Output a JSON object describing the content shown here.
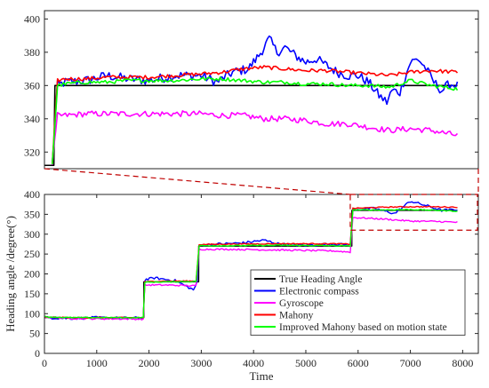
{
  "chart_data": [
    {
      "type": "line",
      "panel": "zoom-inset",
      "title": "",
      "xlabel": "",
      "ylabel": "",
      "xlim": [
        0,
        8300
      ],
      "ylim": [
        310,
        405
      ],
      "yticks": [
        320,
        340,
        360,
        380,
        400
      ],
      "grid": false,
      "series": [
        {
          "name": "True Heading Angle",
          "color": "#000000",
          "x": [
            0,
            180,
            200,
            500,
            1000,
            2000,
            3000,
            4000,
            5000,
            6000,
            7000,
            7900
          ],
          "y": [
            312,
            312,
            360,
            360,
            360,
            360,
            360,
            360,
            360,
            360,
            360,
            360
          ]
        },
        {
          "name": "Electronic compass",
          "color": "#0000ff",
          "x": [
            150,
            250,
            400,
            800,
            1200,
            1600,
            2000,
            2500,
            3000,
            3300,
            3600,
            3900,
            4100,
            4300,
            4450,
            4600,
            4800,
            5000,
            5200,
            5400,
            5600,
            5800,
            6000,
            6200,
            6400,
            6550,
            6650,
            6800,
            7000,
            7150,
            7300,
            7450,
            7600,
            7750,
            7900
          ],
          "y": [
            313,
            360,
            362,
            363,
            366,
            364,
            363,
            366,
            366,
            362,
            368,
            370,
            378,
            388,
            380,
            383,
            378,
            374,
            376,
            372,
            368,
            366,
            366,
            362,
            354,
            350,
            357,
            356,
            374,
            376,
            370,
            362,
            357,
            361,
            360
          ]
        },
        {
          "name": "Gyroscope",
          "color": "#ff00ff",
          "x": [
            150,
            250,
            400,
            800,
            1200,
            1600,
            2000,
            2500,
            3000,
            3400,
            3800,
            4200,
            4600,
            5000,
            5400,
            5800,
            6200,
            6600,
            7000,
            7400,
            7900
          ],
          "y": [
            313,
            342,
            342,
            343,
            343,
            343,
            343,
            343,
            343,
            342,
            342,
            340,
            340,
            339,
            337,
            337,
            335,
            333,
            334,
            333,
            330
          ]
        },
        {
          "name": "Mahony",
          "color": "#ff0000",
          "x": [
            150,
            250,
            400,
            800,
            1200,
            1600,
            2000,
            2500,
            3000,
            3400,
            3800,
            4200,
            4600,
            5000,
            5400,
            5800,
            6200,
            6600,
            7000,
            7400,
            7900
          ],
          "y": [
            313,
            363,
            364,
            364,
            365,
            365,
            365,
            366,
            367,
            368,
            370,
            371,
            370,
            369,
            369,
            368,
            367,
            366,
            368,
            369,
            368
          ]
        },
        {
          "name": "Improved Mahony based on motion state",
          "color": "#00ff00",
          "x": [
            150,
            250,
            400,
            800,
            1200,
            1600,
            2000,
            2500,
            3000,
            3400,
            3800,
            4200,
            4600,
            5000,
            5400,
            5800,
            6200,
            6600,
            7000,
            7400,
            7900
          ],
          "y": [
            313,
            360,
            361,
            362,
            362,
            363,
            363,
            363,
            364,
            364,
            363,
            362,
            362,
            361,
            361,
            360,
            360,
            359,
            363,
            360,
            358
          ]
        }
      ]
    },
    {
      "type": "line",
      "panel": "main",
      "title": "",
      "xlabel": "Time",
      "ylabel": "Heading angle /degree(°)",
      "xlim": [
        0,
        8300
      ],
      "ylim": [
        0,
        400
      ],
      "xticks": [
        0,
        1000,
        2000,
        3000,
        4000,
        5000,
        6000,
        7000,
        8000
      ],
      "yticks": [
        0,
        50,
        100,
        150,
        200,
        250,
        300,
        350,
        400
      ],
      "grid": false,
      "legend": "lower-right",
      "series": [
        {
          "name": "True Heading Angle",
          "color": "#000000",
          "x": [
            0,
            1900,
            1901,
            2950,
            2951,
            5880,
            5881,
            7900
          ],
          "y": [
            90,
            90,
            180,
            180,
            270,
            270,
            360,
            360
          ]
        },
        {
          "name": "Electronic compass",
          "color": "#0000ff",
          "x": [
            0,
            500,
            1000,
            1500,
            1890,
            1920,
            2100,
            2500,
            2850,
            2920,
            2960,
            3300,
            3800,
            4200,
            4500,
            5000,
            5500,
            5850,
            5900,
            6300,
            6700,
            7000,
            7300,
            7600,
            7900
          ],
          "y": [
            90,
            88,
            90,
            89,
            89,
            185,
            190,
            183,
            160,
            178,
            272,
            275,
            278,
            285,
            275,
            272,
            275,
            273,
            362,
            365,
            352,
            383,
            372,
            360,
            362
          ]
        },
        {
          "name": "Gyroscope",
          "color": "#ff00ff",
          "x": [
            0,
            500,
            1000,
            1500,
            1890,
            1920,
            2300,
            2900,
            2960,
            3500,
            4500,
            5500,
            5850,
            5900,
            6500,
            7000,
            7500,
            7900
          ],
          "y": [
            92,
            88,
            87,
            87,
            86,
            172,
            172,
            170,
            262,
            262,
            260,
            258,
            255,
            342,
            338,
            333,
            332,
            330
          ]
        },
        {
          "name": "Mahony",
          "color": "#ff0000",
          "x": [
            0,
            500,
            1000,
            1500,
            1890,
            1920,
            2300,
            2900,
            2960,
            3500,
            4500,
            5500,
            5850,
            5900,
            6500,
            7000,
            7500,
            7900
          ],
          "y": [
            91,
            90,
            90,
            90,
            90,
            180,
            182,
            182,
            274,
            275,
            276,
            276,
            275,
            365,
            368,
            369,
            369,
            368
          ]
        },
        {
          "name": "Improved Mahony based on motion state",
          "color": "#00ff00",
          "x": [
            0,
            500,
            1000,
            1500,
            1890,
            1920,
            2300,
            2900,
            2960,
            3500,
            4500,
            5500,
            5850,
            5900,
            6500,
            7000,
            7500,
            7900
          ],
          "y": [
            92,
            90,
            90,
            90,
            90,
            179,
            180,
            181,
            271,
            271,
            272,
            271,
            270,
            361,
            361,
            362,
            360,
            358
          ]
        }
      ]
    }
  ]
}
